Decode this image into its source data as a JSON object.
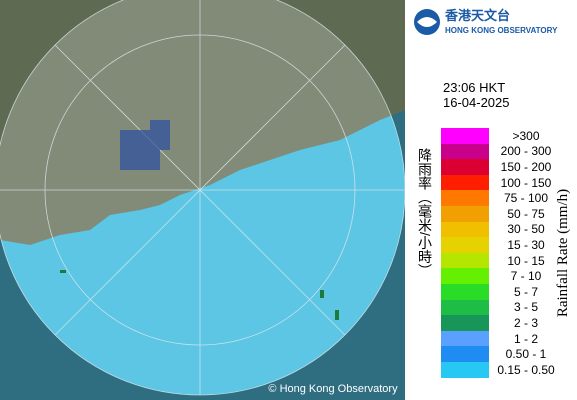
{
  "header": {
    "logo_chinese": "香港天文台",
    "logo_english": "HONG KONG OBSERVATORY"
  },
  "timestamp": {
    "time": "23:06 HKT",
    "date": "16-04-2025"
  },
  "legend": {
    "label_zh": "降雨率（毫米/小時）",
    "label_en": "Rainfall Rate (mm/h)",
    "items": [
      {
        "label": ">300",
        "color": "#ff00ff"
      },
      {
        "label": "200 - 300",
        "color": "#c8008c"
      },
      {
        "label": "150 - 200",
        "color": "#dc0032"
      },
      {
        "label": "100 - 150",
        "color": "#ff1e00"
      },
      {
        "label": "75 - 100",
        "color": "#ff7800"
      },
      {
        "label": "50 - 75",
        "color": "#f0a000"
      },
      {
        "label": "30 - 50",
        "color": "#f0c000"
      },
      {
        "label": "15 - 30",
        "color": "#e6d200"
      },
      {
        "label": "10 - 15",
        "color": "#b4e600"
      },
      {
        "label": "7 - 10",
        "color": "#64f000"
      },
      {
        "label": "5 - 7",
        "color": "#28dc28"
      },
      {
        "label": "3 - 5",
        "color": "#1ebe46"
      },
      {
        "label": "2 - 3",
        "color": "#18965a"
      },
      {
        "label": "1 - 2",
        "color": "#5aa0ff"
      },
      {
        "label": "0.50 - 1",
        "color": "#1e8cf0"
      },
      {
        "label": "0.15 - 0.50",
        "color": "#28c8f5"
      }
    ]
  },
  "copyright": "© Hong Kong Observatory"
}
